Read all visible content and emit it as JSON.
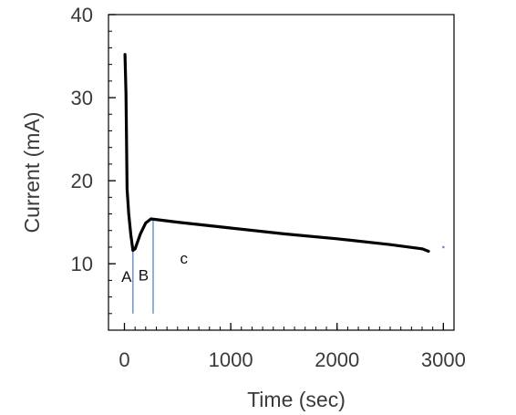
{
  "chart_data": {
    "type": "line",
    "title": "",
    "xlabel": "Time (sec)",
    "ylabel": "Current (mA)",
    "xlim": [
      -150,
      3100
    ],
    "ylim": [
      2,
      40
    ],
    "x_ticks": [
      0,
      1000,
      2000,
      3000
    ],
    "x_tick_labels": [
      "0",
      "1000",
      "2000",
      "3000"
    ],
    "y_ticks": [
      10,
      20,
      30,
      40
    ],
    "y_tick_labels": [
      "10",
      "20",
      "30",
      "40"
    ],
    "x_minor_step": 100,
    "y_minor_step": 2,
    "grid": false,
    "legend": "none",
    "series": [
      {
        "color": "#000000",
        "x": [
          5,
          15,
          25,
          40,
          60,
          80,
          100,
          150,
          200,
          250,
          500,
          1000,
          1500,
          2000,
          2500,
          2800,
          2860
        ],
        "y": [
          35.2,
          30.5,
          19.0,
          16.0,
          13.5,
          11.6,
          11.8,
          13.6,
          14.9,
          15.4,
          15.0,
          14.3,
          13.6,
          13.0,
          12.3,
          11.8,
          11.5
        ]
      }
    ],
    "markers": [
      {
        "x": 3000,
        "y": 12.0,
        "color": "#7788cc"
      }
    ],
    "vlines": [
      {
        "x": 80,
        "y0": 4,
        "y1": 11.6,
        "color": "#4a78c0"
      },
      {
        "x": 270,
        "y0": 4,
        "y1": 15.4,
        "color": "#4a78c0"
      }
    ],
    "annotations": [
      {
        "text": "A",
        "x": 20,
        "y": 7.8
      },
      {
        "text": "B",
        "x": 180,
        "y": 8.0
      },
      {
        "text": "c",
        "x": 560,
        "y": 10.0
      }
    ],
    "colors": {
      "line": "#000000",
      "axis": "#000000",
      "text": "#3a3a3a",
      "vline": "#4a78c0"
    }
  }
}
